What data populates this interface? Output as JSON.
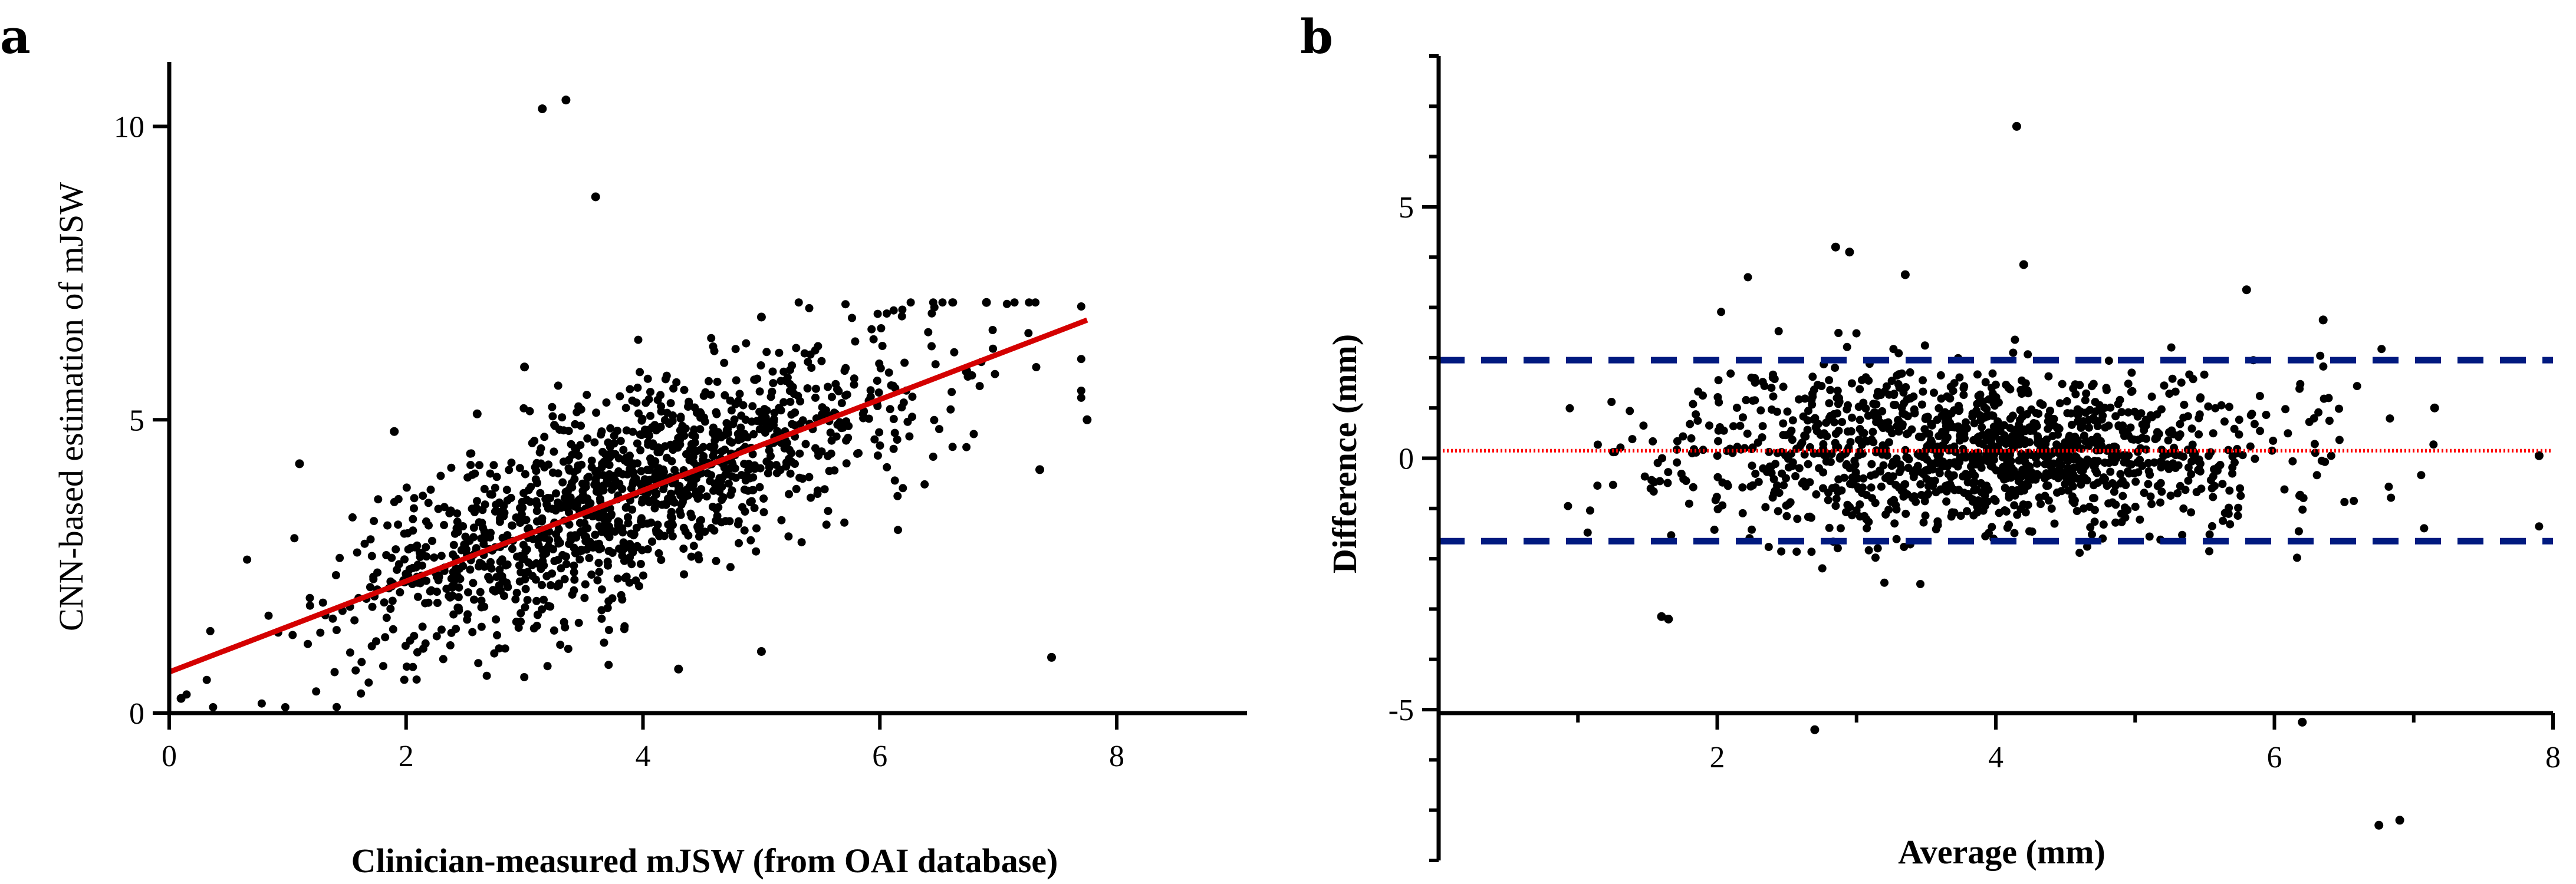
{
  "chart_data": [
    {
      "panel_label": "a",
      "type": "scatter",
      "title": "",
      "xlabel": "Clinician-measured mJSW (from OAI database)",
      "ylabel": "CNN-based estimation of mJSW",
      "xlim": [
        0,
        9.1
      ],
      "ylim": [
        0,
        11.1
      ],
      "xticks": [
        0,
        2,
        4,
        6,
        8
      ],
      "yticks": [
        0,
        5,
        10
      ],
      "grid": false,
      "point_color": "#000000",
      "fit_line": {
        "color": "#d40000",
        "x": [
          0,
          7.75
        ],
        "y": [
          0.7,
          6.7
        ]
      },
      "outliers": [
        {
          "x": 3.15,
          "y": 10.3
        },
        {
          "x": 3.35,
          "y": 10.45
        },
        {
          "x": 3.6,
          "y": 8.8
        },
        {
          "x": 7.75,
          "y": 5.0
        },
        {
          "x": 7.35,
          "y": 4.15
        },
        {
          "x": 7.45,
          "y": 0.95
        },
        {
          "x": 1.1,
          "y": 4.25
        },
        {
          "x": 1.9,
          "y": 4.8
        },
        {
          "x": 2.6,
          "y": 5.1
        },
        {
          "x": 3.0,
          "y": 5.9
        },
        {
          "x": 6.9,
          "y": 7.0
        },
        {
          "x": 5.0,
          "y": 6.75
        },
        {
          "x": 4.3,
          "y": 0.75
        },
        {
          "x": 5.0,
          "y": 1.05
        },
        {
          "x": 0.1,
          "y": 0.25
        }
      ],
      "cloud": {
        "n": 1350,
        "x_center": 3.9,
        "x_sd": 1.25,
        "x_range": [
          0.05,
          7.7
        ],
        "slope": 0.775,
        "intercept": 0.7,
        "residual_sd": 0.85,
        "y_range": [
          0.1,
          7.0
        ],
        "seed": 7
      }
    },
    {
      "panel_label": "b",
      "type": "scatter",
      "title": "",
      "xlabel": "Average (mm)",
      "ylabel": "Difference (mm)",
      "xlim": [
        0,
        8
      ],
      "ylim": [
        -8,
        8
      ],
      "xticks": [
        2,
        4,
        6,
        8
      ],
      "yticks": [
        -5,
        0,
        5
      ],
      "grid": false,
      "point_color": "#000000",
      "mean_line": {
        "y": 0.15,
        "color": "#ff0000",
        "style": "dotted"
      },
      "limits_of_agreement": {
        "upper": 1.95,
        "lower": -1.65,
        "color": "#001a80",
        "style": "dashed"
      },
      "outliers": [
        {
          "x": 4.15,
          "y": 6.6
        },
        {
          "x": 2.85,
          "y": 4.2
        },
        {
          "x": 2.95,
          "y": 4.1
        },
        {
          "x": 4.2,
          "y": 3.85
        },
        {
          "x": 5.8,
          "y": 3.35
        },
        {
          "x": 6.35,
          "y": 2.75
        },
        {
          "x": 1.6,
          "y": -3.15
        },
        {
          "x": 1.65,
          "y": -3.2
        },
        {
          "x": 2.7,
          "y": -5.4
        },
        {
          "x": 6.2,
          "y": -5.25
        },
        {
          "x": 6.75,
          "y": -7.3
        },
        {
          "x": 6.9,
          "y": -7.2
        },
        {
          "x": 7.15,
          "y": 1.0
        },
        {
          "x": 7.9,
          "y": 0.05
        },
        {
          "x": 3.35,
          "y": 3.65
        }
      ],
      "cloud": {
        "n": 1350,
        "x_center": 3.9,
        "x_sd": 1.05,
        "x_range": [
          0.35,
          7.9
        ],
        "mean": 0.15,
        "residual_sd": 0.95,
        "y_range": [
          -3.1,
          3.6
        ],
        "seed": 11
      }
    }
  ]
}
